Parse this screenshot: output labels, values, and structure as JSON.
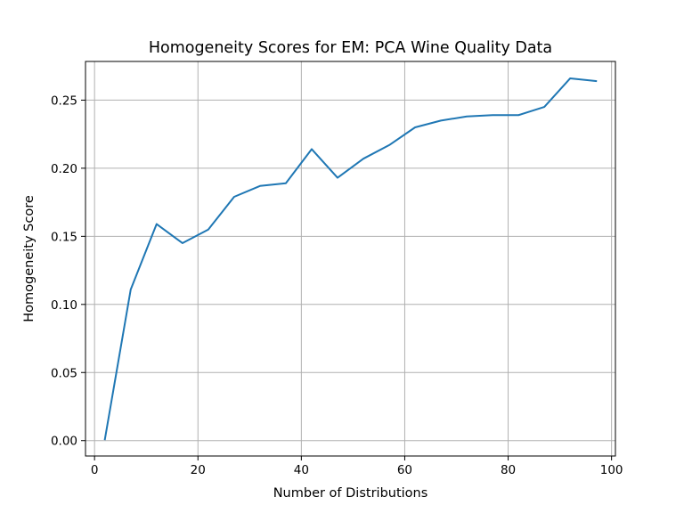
{
  "chart_data": {
    "type": "line",
    "title": "Homogeneity Scores for EM: PCA Wine Quality Data",
    "xlabel": "Number of Distributions",
    "ylabel": "Homogeneity Score",
    "xlim": [
      -1.75,
      100.75
    ],
    "ylim": [
      -0.0113,
      0.2784
    ],
    "xticks": [
      0,
      20,
      40,
      60,
      80,
      100
    ],
    "xtick_labels": [
      "0",
      "20",
      "40",
      "60",
      "80",
      "100"
    ],
    "yticks": [
      0.0,
      0.05,
      0.1,
      0.15,
      0.2,
      0.25
    ],
    "ytick_labels": [
      "0.00",
      "0.05",
      "0.10",
      "0.15",
      "0.20",
      "0.25"
    ],
    "grid": true,
    "series": [
      {
        "color": "#1f77b4",
        "x": [
          2,
          7,
          12,
          17,
          22,
          27,
          32,
          37,
          42,
          47,
          52,
          57,
          62,
          67,
          72,
          77,
          82,
          87,
          92,
          97
        ],
        "y": [
          0.001,
          0.111,
          0.159,
          0.145,
          0.155,
          0.179,
          0.187,
          0.189,
          0.214,
          0.193,
          0.207,
          0.217,
          0.23,
          0.235,
          0.238,
          0.239,
          0.239,
          0.245,
          0.266,
          0.264
        ]
      }
    ]
  }
}
